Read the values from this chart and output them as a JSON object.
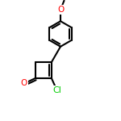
{
  "background_color": "#ffffff",
  "bond_color": "#000000",
  "atom_colors": {
    "O": "#ff0000",
    "Cl": "#00cc00",
    "C": "#000000"
  },
  "bond_width": 1.5,
  "font_size": 7,
  "fig_size": [
    1.5,
    1.5
  ],
  "dpi": 100
}
